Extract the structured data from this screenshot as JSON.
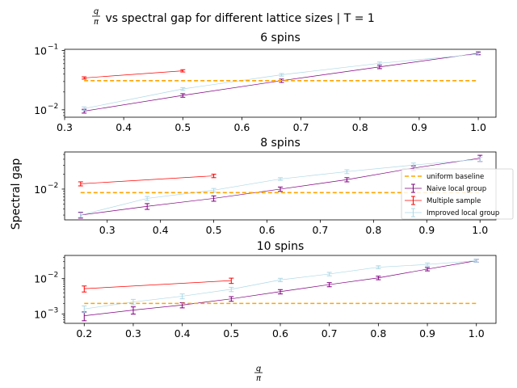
{
  "figure": {
    "suptitle_prefix": "q/π",
    "suptitle_rest": " vs spectral gap for different lattice sizes | T = 1",
    "xlabel_num": "q",
    "xlabel_den": "π",
    "ylabel": "Spectral gap"
  },
  "legend": {
    "placement": "right of middle panel",
    "entries": [
      {
        "label": "uniform baseline",
        "color": "#ffa500",
        "style": "dashed"
      },
      {
        "label": "Naive local group",
        "color": "#800080",
        "style": "errorbar"
      },
      {
        "label": "Multiple sample",
        "color": "#ff0000",
        "style": "errorbar"
      },
      {
        "label": "Improved local group",
        "color": "#add8e6",
        "style": "errorbar"
      }
    ]
  },
  "chart_data": [
    {
      "type": "line",
      "title": "6 spins",
      "yscale": "log",
      "xlim": [
        0.3,
        1.03
      ],
      "ylim": [
        0.0075,
        0.105
      ],
      "xticks": [
        "0.3",
        "0.4",
        "0.5",
        "0.6",
        "0.7",
        "0.8",
        "0.9",
        "1.0"
      ],
      "yticks": [
        {
          "value": 0.01,
          "base": "10",
          "exp": "−2"
        },
        {
          "value": 0.1,
          "base": "10",
          "exp": "−1"
        }
      ],
      "baseline": {
        "value": 0.031,
        "x": [
          0.333,
          1.0
        ]
      },
      "series": [
        {
          "name": "Naive local group",
          "color": "#800080",
          "x": [
            0.333,
            0.5,
            0.667,
            0.833,
            1.0
          ],
          "y": [
            0.0095,
            0.0175,
            0.031,
            0.053,
            0.09
          ],
          "err": [
            0.0007,
            0.0012,
            0.002,
            0.0035,
            0.005
          ]
        },
        {
          "name": "Multiple sample",
          "color": "#ff0000",
          "x": [
            0.333,
            0.5
          ],
          "y": [
            0.0345,
            0.0455
          ],
          "err": [
            0.0015,
            0.002
          ]
        },
        {
          "name": "Improved local group",
          "color": "#add8e6",
          "x": [
            0.333,
            0.5,
            0.667,
            0.833,
            1.0
          ],
          "y": [
            0.0105,
            0.0225,
            0.039,
            0.061,
            0.087
          ],
          "err": [
            0.0007,
            0.0012,
            0.002,
            0.003,
            0.004
          ]
        }
      ]
    },
    {
      "type": "line",
      "title": "8 spins",
      "yscale": "log",
      "xlim": [
        0.22,
        1.03
      ],
      "ylim": [
        0.0024,
        0.056
      ],
      "xticks": [
        "0.3",
        "0.4",
        "0.5",
        "0.6",
        "0.7",
        "0.8",
        "0.9",
        "1.0"
      ],
      "yticks": [
        {
          "value": 0.01,
          "base": "10",
          "exp": "−2"
        }
      ],
      "baseline": {
        "value": 0.0085,
        "x": [
          0.25,
          1.0
        ]
      },
      "series": [
        {
          "name": "Naive local group",
          "color": "#800080",
          "x": [
            0.25,
            0.375,
            0.5,
            0.625,
            0.75,
            0.875,
            1.0
          ],
          "y": [
            0.003,
            0.0045,
            0.0065,
            0.01,
            0.0155,
            0.0265,
            0.042
          ],
          "err": [
            0.0004,
            0.0006,
            0.0008,
            0.001,
            0.0015,
            0.003,
            0.006
          ]
        },
        {
          "name": "Multiple sample",
          "color": "#ff0000",
          "x": [
            0.25,
            0.5
          ],
          "y": [
            0.0128,
            0.0185
          ],
          "err": [
            0.0012,
            0.0015
          ]
        },
        {
          "name": "Improved local group",
          "color": "#add8e6",
          "x": [
            0.25,
            0.375,
            0.5,
            0.625,
            0.75,
            0.875,
            1.0
          ],
          "y": [
            0.003,
            0.0065,
            0.0095,
            0.016,
            0.0225,
            0.0305,
            0.04
          ],
          "err": [
            0.0003,
            0.0006,
            0.0008,
            0.001,
            0.002,
            0.003,
            0.004
          ]
        }
      ]
    },
    {
      "type": "line",
      "title": "10 spins",
      "yscale": "log",
      "xlim": [
        0.16,
        1.04
      ],
      "ylim": [
        0.00055,
        0.045
      ],
      "xticks": [
        "0.2",
        "0.3",
        "0.4",
        "0.5",
        "0.6",
        "0.7",
        "0.8",
        "0.9",
        "1.0"
      ],
      "yticks": [
        {
          "value": 0.001,
          "base": "10",
          "exp": "−3"
        },
        {
          "value": 0.01,
          "base": "10",
          "exp": "−2"
        }
      ],
      "baseline": {
        "value": 0.002,
        "x": [
          0.2,
          1.0
        ]
      },
      "series": [
        {
          "name": "Naive local group",
          "color": "#800080",
          "x": [
            0.2,
            0.3,
            0.4,
            0.5,
            0.6,
            0.7,
            0.8,
            0.9,
            1.0
          ],
          "y": [
            0.0009,
            0.0013,
            0.0018,
            0.0027,
            0.0043,
            0.0068,
            0.0105,
            0.0185,
            0.032
          ],
          "err": [
            0.00025,
            0.0003,
            0.0003,
            0.0004,
            0.0006,
            0.0009,
            0.0012,
            0.002,
            0.003
          ]
        },
        {
          "name": "Multiple sample",
          "color": "#ff0000",
          "x": [
            0.2,
            0.5
          ],
          "y": [
            0.0052,
            0.0088
          ],
          "err": [
            0.001,
            0.0015
          ]
        },
        {
          "name": "Improved local group",
          "color": "#add8e6",
          "x": [
            0.2,
            0.3,
            0.4,
            0.5,
            0.6,
            0.7,
            0.8,
            0.9,
            1.0
          ],
          "y": [
            0.0014,
            0.0022,
            0.0032,
            0.005,
            0.0092,
            0.0135,
            0.021,
            0.025,
            0.032
          ],
          "err": [
            0.0003,
            0.0004,
            0.0005,
            0.0007,
            0.001,
            0.0015,
            0.002,
            0.0025,
            0.003
          ]
        }
      ]
    }
  ]
}
